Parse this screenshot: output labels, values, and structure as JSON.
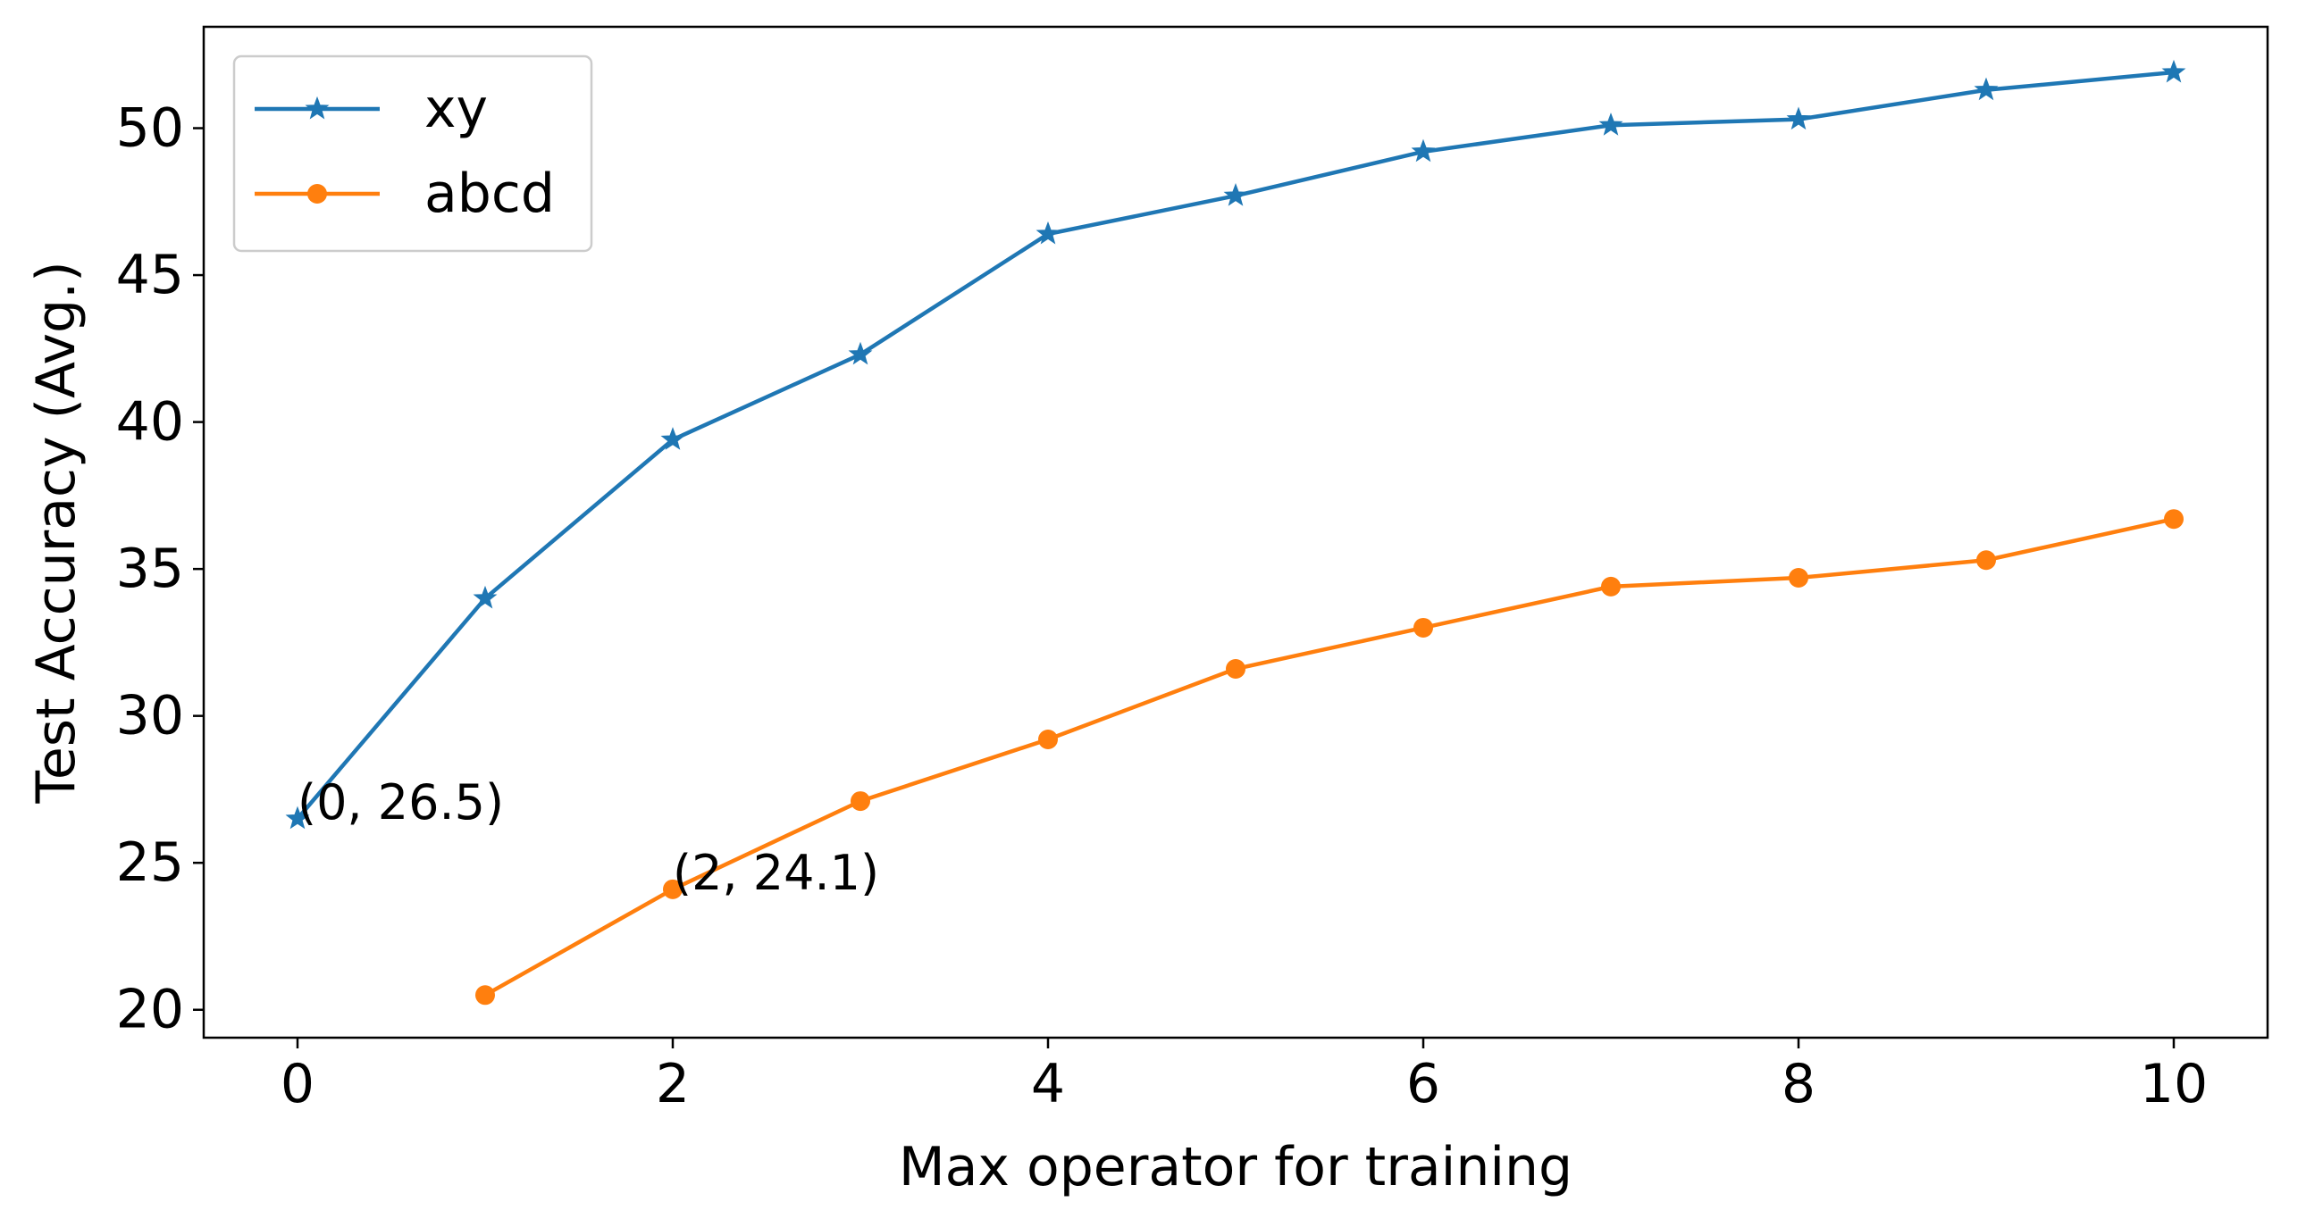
{
  "chart_data": {
    "type": "line",
    "title": "",
    "xlabel": "Max operator for training",
    "ylabel": "Test Accuracy (Avg.)",
    "xlim": [
      -0.5,
      10.5
    ],
    "ylim": [
      19.05,
      53.45
    ],
    "xticks": [
      0,
      2,
      4,
      6,
      8,
      10
    ],
    "yticks": [
      20,
      25,
      30,
      35,
      40,
      45,
      50
    ],
    "xtick_labels": [
      "0",
      "2",
      "4",
      "6",
      "8",
      "10"
    ],
    "ytick_labels": [
      "20",
      "25",
      "30",
      "35",
      "40",
      "45",
      "50"
    ],
    "grid": false,
    "legend_position": "top-left",
    "series": [
      {
        "name": "xy",
        "color": "#1f77b4",
        "marker": "star",
        "x": [
          0,
          1,
          2,
          3,
          4,
          5,
          6,
          7,
          8,
          9,
          10
        ],
        "values": [
          26.5,
          34.0,
          39.4,
          42.3,
          46.4,
          47.7,
          49.2,
          50.1,
          50.3,
          51.3,
          51.9
        ]
      },
      {
        "name": "abcd",
        "color": "#ff7f0e",
        "marker": "circle",
        "x": [
          1,
          2,
          3,
          4,
          5,
          6,
          7,
          8,
          9,
          10
        ],
        "values": [
          20.5,
          24.1,
          27.1,
          29.2,
          31.6,
          33.0,
          34.4,
          34.7,
          35.3,
          36.7
        ]
      }
    ],
    "annotations": [
      {
        "text": "(0, 26.5)",
        "x": 0,
        "y": 26.5
      },
      {
        "text": "(2, 24.1)",
        "x": 2,
        "y": 24.1
      }
    ]
  }
}
